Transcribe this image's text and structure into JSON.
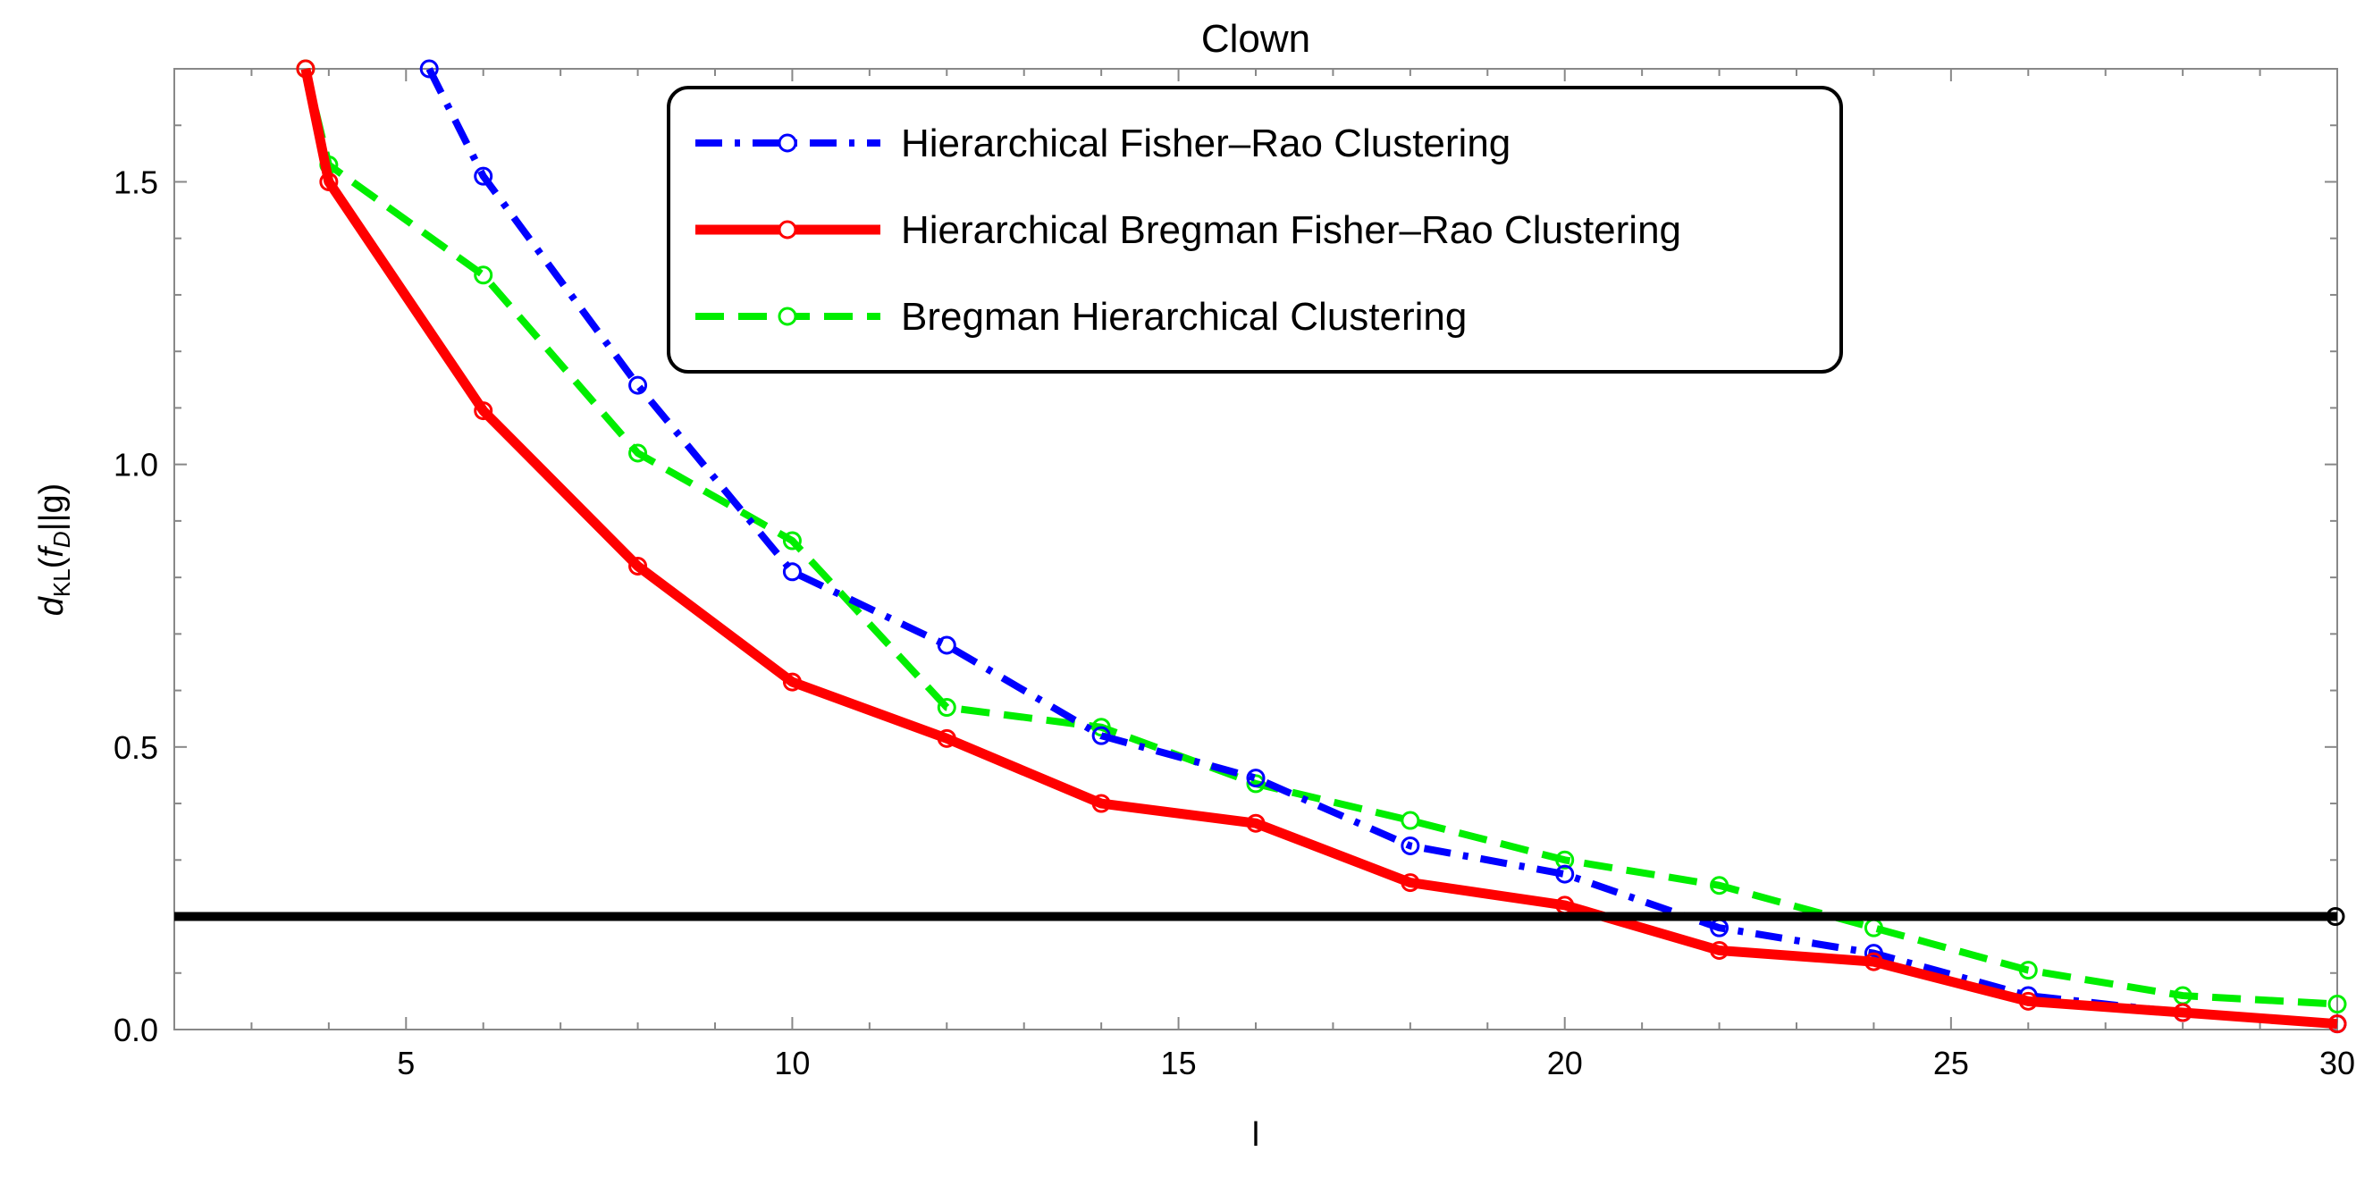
{
  "chart_data": {
    "type": "line",
    "title": "Clown",
    "xlabel": "l",
    "ylabel": "d_KL(f_D||g)",
    "ylabel_parts": {
      "d": "d",
      "sub_kl": "KL",
      "open": "(",
      "f": "f",
      "sub_d": "D",
      "rest": "||g)"
    },
    "xlim": [
      2,
      30
    ],
    "ylim": [
      0,
      1.7
    ],
    "xticks": [
      5,
      10,
      15,
      20,
      25,
      30
    ],
    "xtick_labels": [
      "5",
      "10",
      "15",
      "20",
      "25",
      "30"
    ],
    "yticks": [
      0,
      0.5,
      1.0,
      1.5
    ],
    "ytick_labels": [
      "0.0",
      "0.5",
      "1.0",
      "1.5"
    ],
    "legend_position": "top-center",
    "grid": false,
    "series": [
      {
        "name": "Hierarchical Fisher–Rao Clustering",
        "color": "#0000ff",
        "style": "dashdot",
        "x": [
          5.3,
          6,
          8,
          10,
          12,
          14,
          16,
          18,
          20,
          22,
          24,
          26,
          28,
          30
        ],
        "y": [
          1.7,
          1.51,
          1.14,
          0.81,
          0.68,
          0.52,
          0.445,
          0.325,
          0.275,
          0.18,
          0.135,
          0.06,
          0.03,
          0.01
        ]
      },
      {
        "name": "Hierarchical Bregman Fisher–Rao Clustering",
        "color": "#ff0000",
        "style": "solid",
        "x": [
          3.7,
          4,
          6,
          8,
          10,
          12,
          14,
          16,
          18,
          20,
          22,
          24,
          26,
          28,
          30
        ],
        "y": [
          1.7,
          1.5,
          1.095,
          0.82,
          0.615,
          0.515,
          0.4,
          0.365,
          0.26,
          0.22,
          0.14,
          0.12,
          0.05,
          0.03,
          0.01
        ]
      },
      {
        "name": "Bregman Hierarchical Clustering",
        "color": "#00ee00",
        "style": "dashed",
        "x": [
          3.7,
          4,
          6,
          8,
          10,
          12,
          14,
          16,
          18,
          20,
          22,
          24,
          26,
          28,
          30
        ],
        "y": [
          1.7,
          1.53,
          1.335,
          1.02,
          0.865,
          0.57,
          0.535,
          0.435,
          0.37,
          0.3,
          0.255,
          0.18,
          0.105,
          0.06,
          0.045
        ]
      }
    ],
    "threshold": {
      "y": 0.2,
      "color": "#000000"
    }
  }
}
